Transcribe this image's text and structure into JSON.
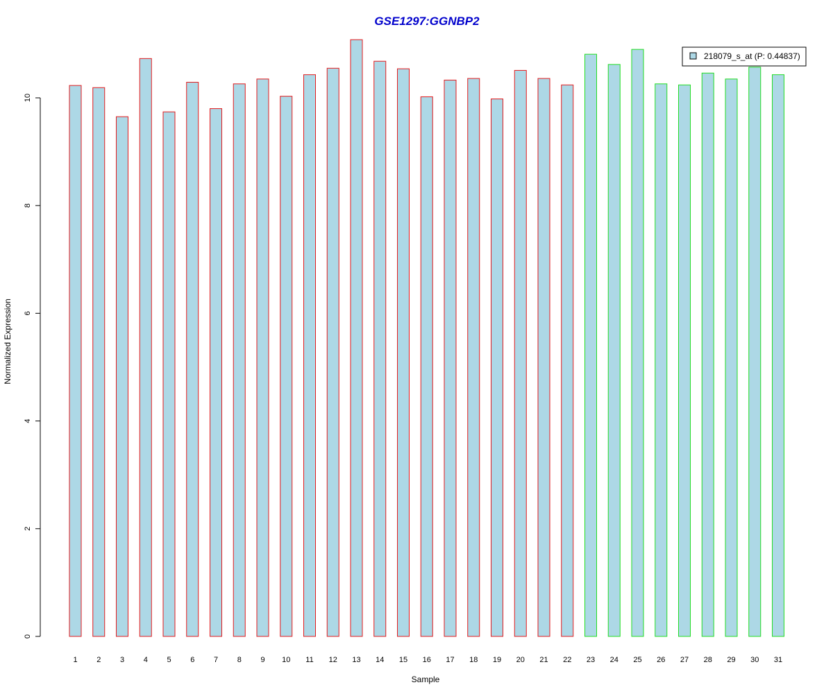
{
  "chart_data": {
    "type": "bar",
    "title": "GSE1297:GGNBP2",
    "xlabel": "Sample",
    "ylabel": "Normalized Expression",
    "categories": [
      "1",
      "2",
      "3",
      "4",
      "5",
      "6",
      "7",
      "8",
      "9",
      "10",
      "11",
      "12",
      "13",
      "14",
      "15",
      "16",
      "17",
      "18",
      "19",
      "20",
      "21",
      "22",
      "23",
      "24",
      "25",
      "26",
      "27",
      "28",
      "29",
      "30",
      "31"
    ],
    "values": [
      10.23,
      10.19,
      9.65,
      10.73,
      9.74,
      10.29,
      9.8,
      10.26,
      10.35,
      10.03,
      10.43,
      10.55,
      11.08,
      10.68,
      10.54,
      10.02,
      10.33,
      10.36,
      9.98,
      10.51,
      10.36,
      10.24,
      10.81,
      10.62,
      10.9,
      10.26,
      10.24,
      10.46,
      10.35,
      10.57,
      10.43
    ],
    "groups": [
      1,
      1,
      1,
      1,
      1,
      1,
      1,
      1,
      1,
      1,
      1,
      1,
      1,
      1,
      1,
      1,
      1,
      1,
      1,
      1,
      1,
      1,
      2,
      2,
      2,
      2,
      2,
      2,
      2,
      2,
      2
    ],
    "yticks": [
      "0",
      "2",
      "4",
      "6",
      "8",
      "10"
    ],
    "ylim": [
      0,
      11.2
    ],
    "legend": {
      "label": "218079_s_at (P: 0.44837)",
      "position": "top-right"
    },
    "colors": {
      "title": "#0000cc",
      "bar_fill": "#add8e6",
      "group1_border": "#e31a1c",
      "group2_border": "#22dd22",
      "axis": "#000000"
    },
    "grid": false
  }
}
